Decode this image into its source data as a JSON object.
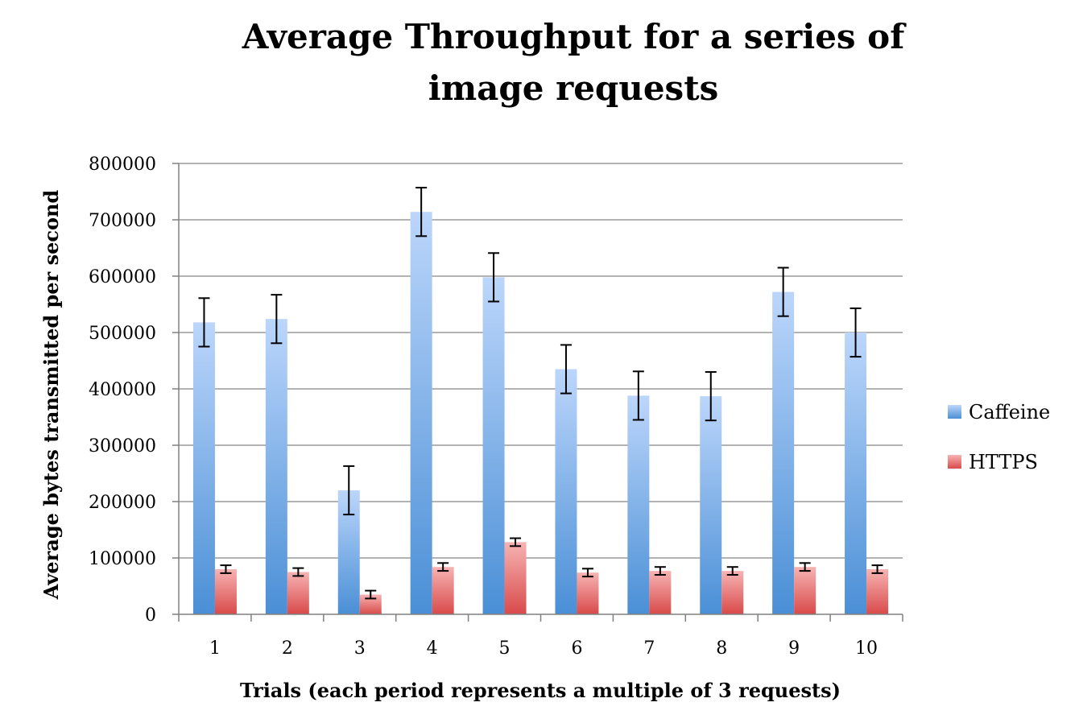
{
  "chart_data": {
    "type": "bar",
    "title_lines": [
      "Average Throughput for a series of",
      "image requests"
    ],
    "xlabel": "Trials (each period represents a multiple of 3 requests)",
    "ylabel": "Average bytes transmitted per second",
    "categories": [
      "1",
      "2",
      "3",
      "4",
      "5",
      "6",
      "7",
      "8",
      "9",
      "10"
    ],
    "ylim": [
      0,
      800000
    ],
    "yticks": [
      0,
      100000,
      200000,
      300000,
      400000,
      500000,
      600000,
      700000,
      800000
    ],
    "ytick_labels": [
      "0",
      "100000",
      "200000",
      "300000",
      "400000",
      "500000",
      "600000",
      "700000",
      "800000"
    ],
    "grid": true,
    "legend_position": "right",
    "series": [
      {
        "name": "Caffeine",
        "color_top": "#bcd6fb",
        "color_bottom": "#4a8fd6",
        "values": [
          518000,
          524000,
          220000,
          714000,
          598000,
          435000,
          388000,
          387000,
          572000,
          500000
        ],
        "error": [
          43000,
          43000,
          43000,
          43000,
          43000,
          43000,
          43000,
          43000,
          43000,
          43000
        ]
      },
      {
        "name": "HTTPS",
        "color_top": "#f7b3b3",
        "color_bottom": "#d94a4a",
        "values": [
          80000,
          75000,
          35000,
          84000,
          128000,
          74000,
          77000,
          77000,
          84000,
          80000
        ],
        "error": [
          7000,
          7000,
          7000,
          7000,
          7000,
          7000,
          7000,
          7000,
          7000,
          7000
        ]
      }
    ]
  }
}
